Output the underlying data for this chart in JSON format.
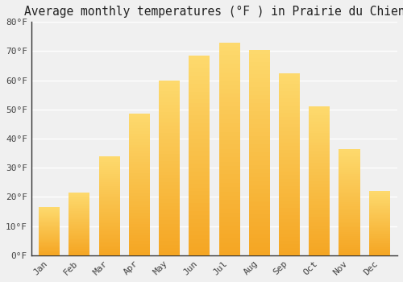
{
  "title": "Average monthly temperatures (°F ) in Prairie du Chien",
  "months": [
    "Jan",
    "Feb",
    "Mar",
    "Apr",
    "May",
    "Jun",
    "Jul",
    "Aug",
    "Sep",
    "Oct",
    "Nov",
    "Dec"
  ],
  "values": [
    16.5,
    21.5,
    34.0,
    48.5,
    60.0,
    68.5,
    73.0,
    70.5,
    62.5,
    51.0,
    36.5,
    22.0
  ],
  "bar_color_bottom": "#F5A623",
  "bar_color_top": "#FDDA6E",
  "ylim": [
    0,
    80
  ],
  "yticks": [
    0,
    10,
    20,
    30,
    40,
    50,
    60,
    70,
    80
  ],
  "ytick_labels": [
    "0°F",
    "10°F",
    "20°F",
    "30°F",
    "40°F",
    "50°F",
    "60°F",
    "70°F",
    "80°F"
  ],
  "background_color": "#f0f0f0",
  "grid_color": "#ffffff",
  "title_fontsize": 10.5,
  "tick_fontsize": 8,
  "font_family": "monospace",
  "bar_width": 0.7,
  "spine_color": "#333333"
}
